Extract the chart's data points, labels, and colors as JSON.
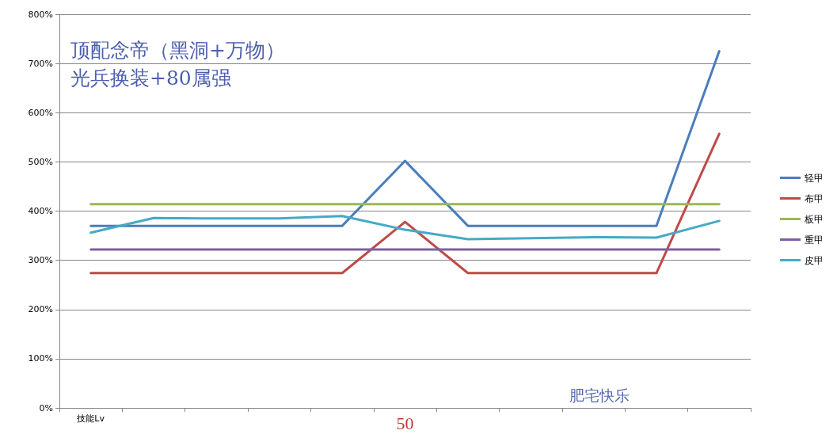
{
  "chart_data": {
    "type": "line",
    "title": "顶配念帝（黑洞+万物）",
    "subtitle": "光兵换装+80属强",
    "categories": [
      "技能Lv",
      null,
      null,
      null,
      null,
      "50",
      null,
      null,
      null,
      null,
      null
    ],
    "series": [
      {
        "name": "轻甲",
        "color": "#4a7ebb",
        "values": [
          370,
          370,
          370,
          370,
          370,
          502,
          370,
          370,
          370,
          370,
          725
        ]
      },
      {
        "name": "布甲",
        "color": "#be4b48",
        "values": [
          274,
          274,
          274,
          274,
          274,
          378,
          274,
          274,
          274,
          274,
          557
        ]
      },
      {
        "name": "板甲",
        "color": "#98b954",
        "values": [
          414,
          414,
          414,
          414,
          414,
          414,
          414,
          414,
          414,
          414,
          414
        ]
      },
      {
        "name": "重甲",
        "color": "#7d60a0",
        "values": [
          322,
          322,
          322,
          322,
          322,
          322,
          322,
          322,
          322,
          322,
          322
        ]
      },
      {
        "name": "皮甲",
        "color": "#46aac5",
        "values": [
          356,
          386,
          385,
          385,
          390,
          362,
          343,
          345,
          347,
          346,
          380
        ]
      }
    ],
    "ylim": [
      0,
      800
    ],
    "yticks": [
      {
        "value": 0,
        "label": "0%"
      },
      {
        "value": 100,
        "label": "100%"
      },
      {
        "value": 200,
        "label": "200%"
      },
      {
        "value": 300,
        "label": "300%"
      },
      {
        "value": 400,
        "label": "400%"
      },
      {
        "value": 500,
        "label": "500%"
      },
      {
        "value": 600,
        "label": "600%"
      },
      {
        "value": 700,
        "label": "700%"
      },
      {
        "value": 800,
        "label": "800%"
      }
    ],
    "annotations": [
      "肥宅快乐"
    ],
    "grid": "y",
    "legend": "right",
    "marker": "none",
    "line_style": "solid"
  }
}
